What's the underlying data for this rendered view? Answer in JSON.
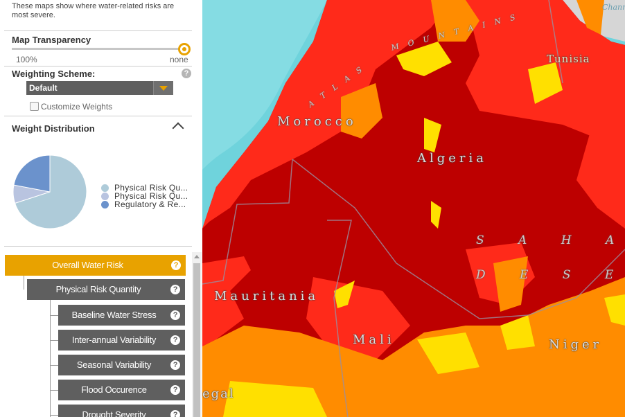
{
  "panel": {
    "intro_text": "These maps show where water-related risks are most severe.",
    "transparency": {
      "title": "Map Transparency",
      "min_label": "100%",
      "max_label": "none",
      "value": 1.0
    },
    "weighting": {
      "title": "Weighting Scheme:",
      "selected": "Default",
      "customize_label": "Customize Weights",
      "customize_checked": false
    },
    "distribution": {
      "title": "Weight Distribution",
      "legend": [
        {
          "label": "Physical Risk Qu...",
          "color": "#aecbd9"
        },
        {
          "label": "Physical Risk Qu...",
          "color": "#b9c4e0"
        },
        {
          "label": "Regulatory & Re...",
          "color": "#6b92cc"
        }
      ],
      "slices": [
        {
          "value": 70,
          "color": "#aecbd9"
        },
        {
          "value": 8,
          "color": "#b9c4e0"
        },
        {
          "value": 22,
          "color": "#6b92cc"
        }
      ]
    },
    "tree": {
      "root": "Overall Water Risk",
      "mid": "Physical Risk Quantity",
      "leaves": [
        "Baseline Water Stress",
        "Inter-annual Variability",
        "Seasonal Variability",
        "Flood Occurence",
        "Drought Severity"
      ],
      "help_glyph": "?"
    }
  },
  "map": {
    "labels": {
      "channel": "Channe",
      "mountains": "M O U N T A I N S",
      "atlas": "A T L A S",
      "tunisia": "Tunisia",
      "morocco": "Morocco",
      "algeria": "Algeria",
      "sahara": "S A H A R A",
      "desert": "D E S E R T",
      "mauritania": "Mauritania",
      "mali": "Mali",
      "niger": "Niger",
      "senegal": "egal"
    },
    "colors": {
      "ocean": "#6fd3dc",
      "land_grey": "#d6d6d6",
      "extremely_high": "#bd0000",
      "high": "#ff2a1a",
      "medium_high": "#ff8c00",
      "low_medium": "#ffe000"
    }
  }
}
